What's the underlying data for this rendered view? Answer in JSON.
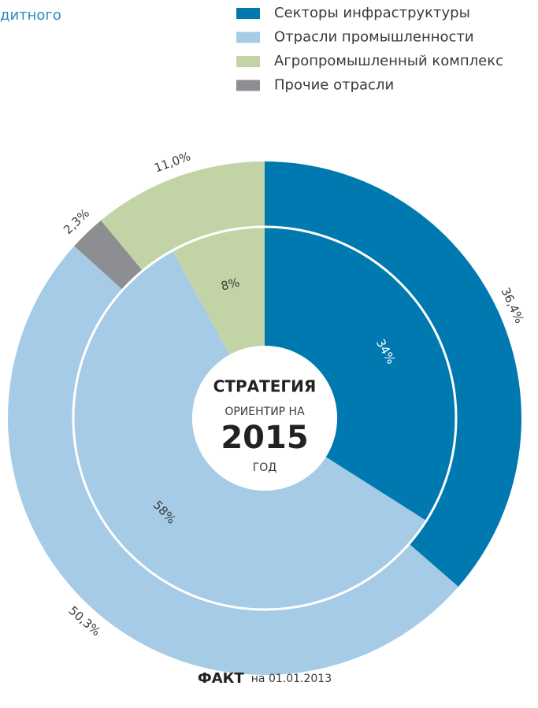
{
  "header_fragment": "дитного",
  "chart_data": {
    "type": "pie",
    "categories": [
      "Секторы инфраструктуры",
      "Отрасли промышленности",
      "Агропромышленный комплекс",
      "Прочие отрасли"
    ],
    "colors": [
      "#0079b0",
      "#a5cbe6",
      "#c2d4a6",
      "#8d8e92"
    ],
    "rings": [
      {
        "name": "ФАКТ",
        "date": "на 01.01.2013",
        "values": [
          36.4,
          50.3,
          11.0,
          2.3
        ],
        "value_labels": [
          "36,4%",
          "50,3%",
          "11,0%",
          "2,3%"
        ]
      },
      {
        "name": "СТРАТЕГИЯ",
        "subtitle": "ОРИЕНТИР НА",
        "year": "2015",
        "unit": "ГОД",
        "values": [
          34,
          58,
          8,
          null
        ],
        "value_labels": [
          "34%",
          "58%",
          "8%",
          null
        ]
      }
    ]
  }
}
